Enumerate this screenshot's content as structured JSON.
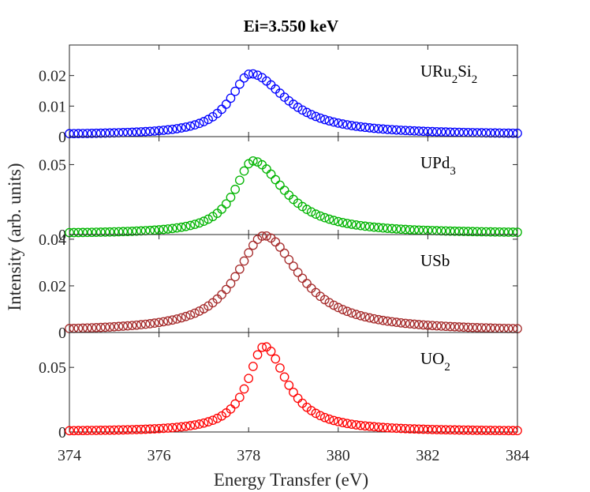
{
  "chart_data": {
    "type": "scatter",
    "title": "Ei=3.550 keV",
    "xlabel": "Energy Transfer (eV)",
    "ylabel": "Intensity (arb. units)",
    "xlim": [
      374,
      384
    ],
    "xticks": [
      374,
      376,
      378,
      380,
      382,
      384
    ],
    "xtick_labels": [
      "374",
      "376",
      "378",
      "380",
      "382",
      "384"
    ],
    "grid": false,
    "panels": [
      {
        "name": "URu2Si2",
        "label": [
          "URu",
          "2",
          "Si",
          "2"
        ],
        "color": "#0000ff",
        "ylim": [
          0,
          0.03
        ],
        "yticks": [
          0,
          0.01,
          0.02
        ],
        "ytick_labels": [
          "0",
          "0.01",
          "0.02"
        ],
        "peak": {
          "center": 378.05,
          "amplitude": 0.02,
          "width_left": 0.55,
          "width_right": 0.95,
          "tail": 0.0006
        }
      },
      {
        "name": "UPd3",
        "label": [
          "UPd",
          "3"
        ],
        "color": "#00b400",
        "ylim": [
          0,
          0.07
        ],
        "yticks": [
          0,
          0.05
        ],
        "ytick_labels": [
          "0",
          "0.05"
        ],
        "peak": {
          "center": 378.1,
          "amplitude": 0.052,
          "width_left": 0.5,
          "width_right": 0.85,
          "tail": 0.0006
        }
      },
      {
        "name": "USb",
        "label": [
          "USb"
        ],
        "color": "#a52a2a",
        "ylim": [
          0,
          0.042
        ],
        "yticks": [
          0,
          0.02,
          0.04
        ],
        "ytick_labels": [
          "0",
          "0.02",
          "0.04"
        ],
        "peak": {
          "center": 378.35,
          "amplitude": 0.041,
          "width_left": 0.75,
          "width_right": 0.95,
          "tail": 0.0005
        }
      },
      {
        "name": "UO2",
        "label": [
          "UO",
          "2"
        ],
        "color": "#ff0000",
        "ylim": [
          0,
          0.077
        ],
        "yticks": [
          0,
          0.05
        ],
        "ytick_labels": [
          "0",
          "0.05"
        ],
        "peak": {
          "center": 378.35,
          "amplitude": 0.066,
          "width_left": 0.45,
          "width_right": 0.6,
          "tail": 0.0003
        }
      }
    ],
    "x_samples": {
      "start": 374,
      "end": 384,
      "step": 0.1
    }
  }
}
